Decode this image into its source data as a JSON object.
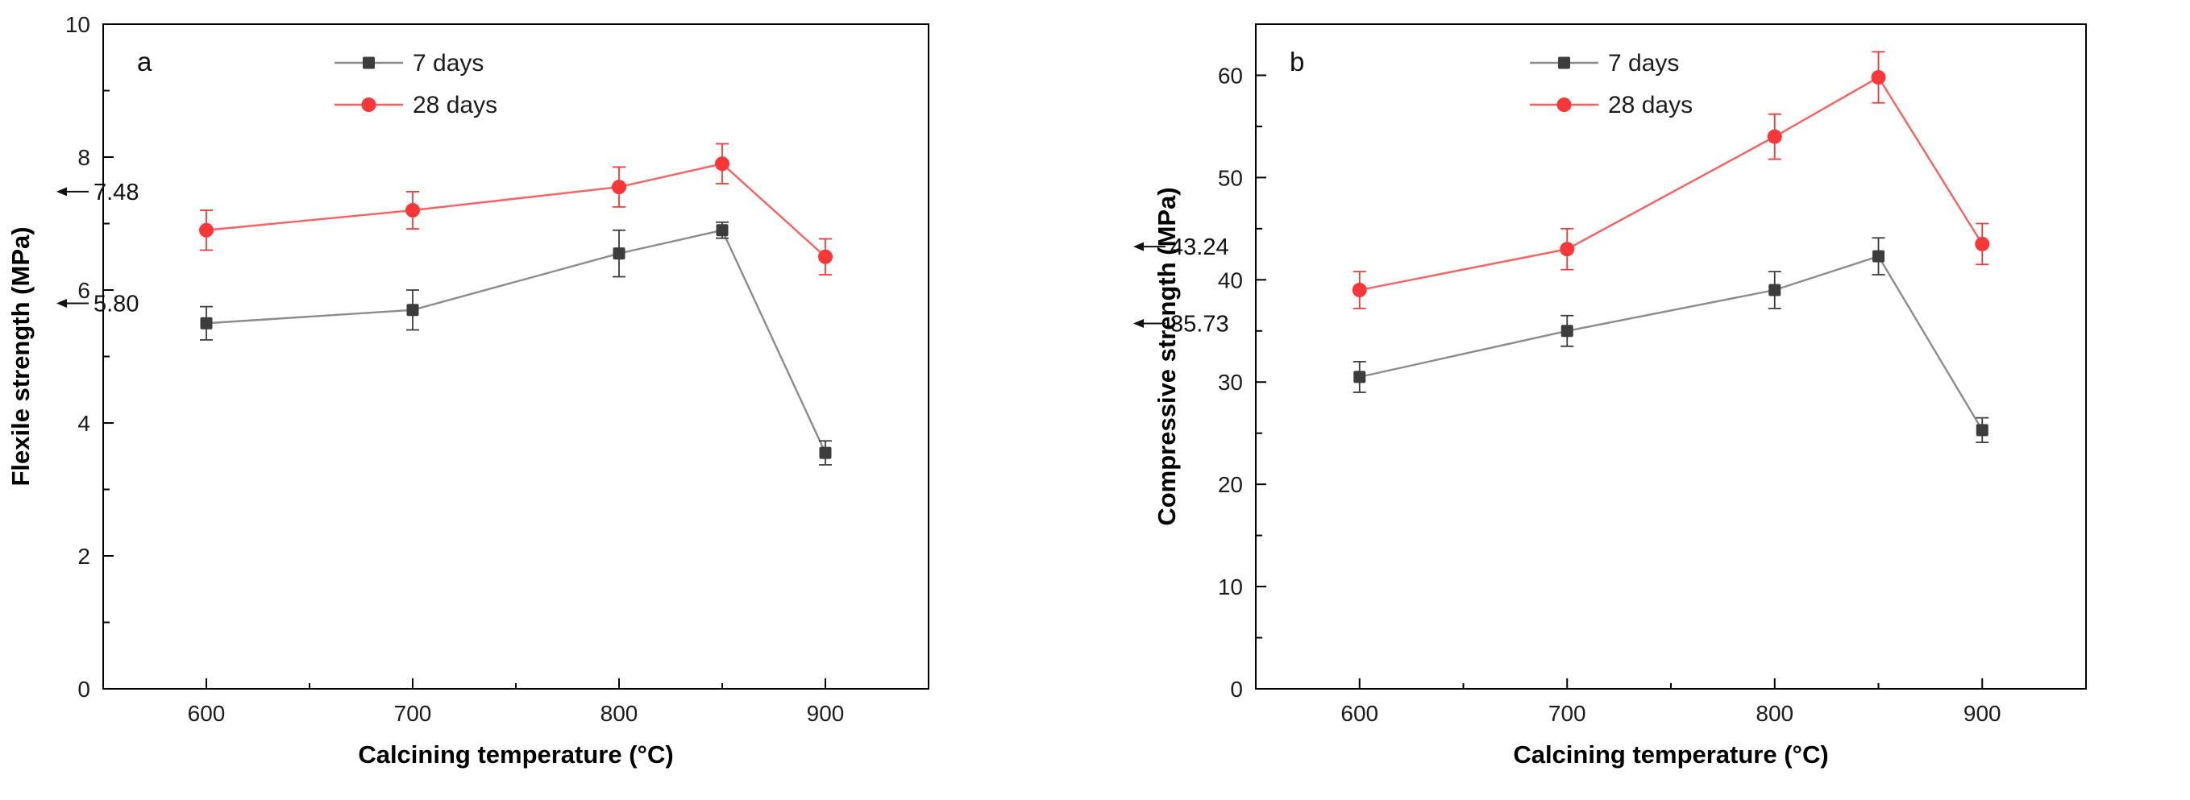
{
  "figure": {
    "background": "#ffffff"
  },
  "chart_data": [
    {
      "id": "a",
      "panel_label": "a",
      "type": "line",
      "xlabel": "Calcining temperature (°C)",
      "ylabel": "Flexile strength (MPa)",
      "xlim": [
        550,
        950
      ],
      "ylim": [
        0,
        10
      ],
      "xticks": [
        600,
        700,
        800,
        900
      ],
      "yticks": [
        0,
        2,
        4,
        6,
        8,
        10
      ],
      "x_minor_ticks": [
        650,
        750,
        850
      ],
      "y_minor_step": 1,
      "x": [
        600,
        700,
        800,
        850,
        900
      ],
      "series": [
        {
          "name": "7 days",
          "marker": "square",
          "line_color": "#8c8c8c",
          "marker_color": "#3d3d3d",
          "values": [
            5.5,
            5.7,
            6.55,
            6.9,
            3.55
          ],
          "errors": [
            0.25,
            0.3,
            0.35,
            0.12,
            0.18
          ]
        },
        {
          "name": "28 days",
          "marker": "circle",
          "line_color": "#f96060",
          "marker_color": "#f83838",
          "values": [
            6.9,
            7.2,
            7.55,
            7.9,
            6.5
          ],
          "errors": [
            0.3,
            0.28,
            0.3,
            0.3,
            0.27
          ]
        }
      ],
      "annotations": [
        {
          "label": "7.48",
          "value": 7.48
        },
        {
          "label": "5.80",
          "value": 5.8
        }
      ],
      "legend": {
        "items": [
          "7 days",
          "28 days"
        ],
        "position": "top-center"
      }
    },
    {
      "id": "b",
      "panel_label": "b",
      "type": "line",
      "xlabel": "Calcining temperature (°C)",
      "ylabel": "Compressive strength (MPa)",
      "xlim": [
        550,
        950
      ],
      "ylim": [
        0,
        65
      ],
      "xticks": [
        600,
        700,
        800,
        900
      ],
      "yticks": [
        0,
        10,
        20,
        30,
        40,
        50,
        60
      ],
      "x_minor_ticks": [
        650,
        750,
        850
      ],
      "y_minor_step": 5,
      "x": [
        600,
        700,
        800,
        850,
        900
      ],
      "series": [
        {
          "name": "7 days",
          "marker": "square",
          "line_color": "#8c8c8c",
          "marker_color": "#3d3d3d",
          "values": [
            30.5,
            35,
            39,
            42.3,
            25.3
          ],
          "errors": [
            1.5,
            1.5,
            1.8,
            1.8,
            1.2
          ]
        },
        {
          "name": "28 days",
          "marker": "circle",
          "line_color": "#f96060",
          "marker_color": "#f83838",
          "values": [
            39,
            43,
            54,
            59.8,
            43.5
          ],
          "errors": [
            1.8,
            2.0,
            2.2,
            2.5,
            2.0
          ]
        }
      ],
      "annotations": [
        {
          "label": "43.24",
          "value": 43.24
        },
        {
          "label": "35.73",
          "value": 35.73
        }
      ],
      "legend": {
        "items": [
          "7 days",
          "28 days"
        ],
        "position": "top-center"
      }
    }
  ]
}
